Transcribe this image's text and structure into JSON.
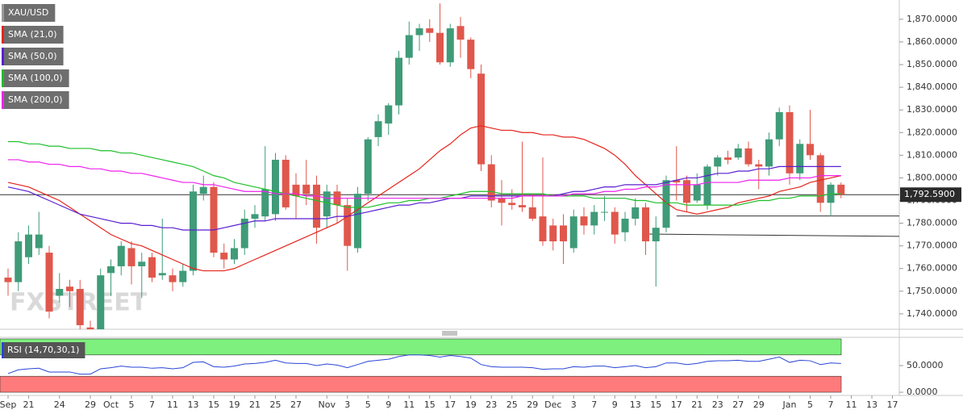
{
  "chart_data": [
    {
      "type": "candlestick",
      "title": "XAU/USD",
      "watermark": "FXSTREET",
      "categories": [
        "Sep",
        null,
        "21",
        null,
        null,
        "24",
        null,
        null,
        "29",
        null,
        "Oct",
        null,
        "5",
        null,
        "7",
        null,
        "11",
        null,
        "13",
        null,
        "15",
        null,
        "19",
        null,
        "21",
        null,
        "25",
        null,
        "27",
        null,
        null,
        "Nov",
        null,
        "3",
        null,
        "5",
        null,
        "9",
        null,
        "11",
        null,
        "15",
        null,
        "17",
        null,
        "19",
        null,
        "23",
        null,
        "25",
        null,
        "29",
        null,
        "Dec",
        null,
        "3",
        null,
        "7",
        null,
        "9",
        null,
        "13",
        null,
        "15",
        null,
        "17",
        null,
        "21",
        null,
        "23",
        null,
        "27",
        null,
        "29",
        null,
        null,
        "Jan",
        null,
        "5",
        null,
        "7",
        null,
        "11",
        null,
        "13",
        null,
        "17"
      ],
      "open": [
        1756,
        1754,
        1765,
        1769,
        1767,
        1748,
        1752,
        1751,
        1734,
        1733,
        1758,
        1761,
        1769,
        1761,
        1765,
        1757,
        1757,
        1754,
        1759,
        1793,
        1796,
        1767,
        1764,
        1769,
        1782,
        1783,
        1784,
        1808,
        1797,
        1797,
        1797,
        1783,
        1794,
        1788,
        1769,
        1793,
        1818,
        1824,
        1832,
        1853,
        1863,
        1866,
        1864,
        1851,
        1867,
        1861,
        1846,
        1806,
        1791,
        1789,
        1788,
        1787,
        1783,
        1779,
        1779,
        1769,
        1783,
        1779,
        1785,
        1785,
        1776,
        1782,
        1787,
        1772,
        1778,
        1799,
        1799,
        1790,
        1788,
        1805,
        1809,
        1809,
        1813,
        1806,
        1805,
        1817,
        1829,
        1802,
        1815,
        1810,
        1789,
        1797,
        null,
        null,
        null,
        null,
        null
      ],
      "high": [
        1760,
        1776,
        1779,
        1785,
        1770,
        1758,
        1755,
        1755,
        1737,
        1760,
        1764,
        1772,
        1772,
        1767,
        1767,
        1782,
        1760,
        1762,
        1797,
        1801,
        1798,
        1771,
        1773,
        1786,
        1788,
        1814,
        1811,
        1810,
        1802,
        1808,
        1801,
        1797,
        1797,
        1791,
        1796,
        1818,
        1828,
        1833,
        1856,
        1869,
        1868,
        1870,
        1877,
        1868,
        1871,
        1862,
        1850,
        1810,
        1799,
        1795,
        1816,
        1793,
        1809,
        1782,
        1784,
        1786,
        1787,
        1788,
        1792,
        1787,
        1785,
        1791,
        1789,
        1783,
        1801,
        1814,
        1801,
        1802,
        1806,
        1810,
        1812,
        1815,
        1816,
        1808,
        1820,
        1831,
        1832,
        1817,
        1830,
        1811,
        1798,
        1798,
        null,
        null,
        null,
        null,
        null
      ],
      "low": [
        1748,
        1750,
        1762,
        1766,
        1738,
        1745,
        1743,
        1733,
        1730,
        1730,
        1748,
        1757,
        1753,
        1747,
        1754,
        1755,
        1750,
        1752,
        1757,
        1790,
        1765,
        1760,
        1762,
        1766,
        1778,
        1781,
        1781,
        1786,
        1782,
        1788,
        1771,
        1778,
        1780,
        1759,
        1767,
        1790,
        1814,
        1819,
        1828,
        1850,
        1856,
        1860,
        1850,
        1849,
        1853,
        1844,
        1803,
        1787,
        1779,
        1786,
        1785,
        1781,
        1770,
        1768,
        1762,
        1767,
        1775,
        1775,
        1781,
        1771,
        1772,
        1779,
        1766,
        1752,
        1776,
        1790,
        1785,
        1789,
        1786,
        1801,
        1806,
        1808,
        1805,
        1795,
        1801,
        1814,
        1797,
        1799,
        1808,
        1785,
        1783,
        1791,
        null,
        null,
        null,
        null,
        null
      ],
      "close": [
        1754,
        1772,
        1775,
        1775,
        1741,
        1751,
        1750,
        1735,
        1733,
        1757,
        1761,
        1770,
        1761,
        1763,
        1756,
        1758,
        1754,
        1759,
        1794,
        1796,
        1767,
        1764,
        1769,
        1782,
        1784,
        1795,
        1808,
        1787,
        1792,
        1793,
        1778,
        1794,
        1788,
        1770,
        1793,
        1817,
        1825,
        1832,
        1853,
        1863,
        1866,
        1864,
        1851,
        1866,
        1861,
        1848,
        1806,
        1790,
        1789,
        1788,
        1787,
        1782,
        1772,
        1772,
        1772,
        1783,
        1779,
        1785,
        1785,
        1775,
        1782,
        1787,
        1772,
        1778,
        1799,
        1798,
        1789,
        1797,
        1805,
        1809,
        1808,
        1813,
        1806,
        1805,
        1817,
        1829,
        1802,
        1815,
        1810,
        1789,
        1797,
        1792.59,
        null,
        null,
        null,
        null,
        null
      ],
      "up_color": "#3f9b78",
      "down_color": "#e0574c",
      "series": [
        {
          "name": "SMA (21,0)",
          "color": "#e5241b",
          "values": [
            1798,
            1797,
            1796,
            1794,
            1792,
            1790,
            1787,
            1784,
            1781,
            1778,
            1775,
            1773,
            1771,
            1770,
            1768,
            1766,
            1764,
            1762,
            1760,
            1759,
            1759,
            1759,
            1760,
            1762,
            1764,
            1766,
            1768,
            1770,
            1772,
            1774,
            1776,
            1778,
            1780,
            1783,
            1786,
            1789,
            1792,
            1795,
            1798,
            1801,
            1804,
            1808,
            1812,
            1815,
            1819,
            1822,
            1823,
            1822,
            1821,
            1821,
            1820,
            1820,
            1819,
            1819,
            1818,
            1818,
            1817,
            1815,
            1813,
            1810,
            1806,
            1801,
            1797,
            1793,
            1789,
            1786,
            1785,
            1784,
            1785,
            1786,
            1787,
            1789,
            1790,
            1791,
            1792,
            1794,
            1795,
            1796,
            1798,
            1799,
            1800,
            1801,
            null,
            null,
            null,
            null,
            null
          ]
        },
        {
          "name": "SMA (50,0)",
          "color": "#5a1fd1",
          "values": [
            1796,
            1795,
            1794,
            1792,
            1790,
            1788,
            1786,
            1784,
            1783,
            1782,
            1781,
            1780,
            1780,
            1779,
            1779,
            1778,
            1778,
            1777,
            1777,
            1777,
            1777,
            1778,
            1779,
            1780,
            1781,
            1781,
            1782,
            1782,
            1782,
            1782,
            1782,
            1782,
            1783,
            1783,
            1784,
            1785,
            1786,
            1787,
            1788,
            1788,
            1789,
            1789,
            1790,
            1791,
            1791,
            1792,
            1792,
            1792,
            1792,
            1792,
            1792,
            1792,
            1792,
            1792,
            1793,
            1794,
            1794,
            1795,
            1796,
            1796,
            1797,
            1797,
            1797,
            1797,
            1798,
            1799,
            1800,
            1800,
            1801,
            1802,
            1802,
            1803,
            1803,
            1804,
            1804,
            1805,
            1805,
            1805,
            1805,
            1805,
            1805,
            1805,
            null,
            null,
            null,
            null,
            null
          ]
        },
        {
          "name": "SMA (100,0)",
          "color": "#1fbf2a",
          "values": [
            1816,
            1816,
            1815,
            1815,
            1814,
            1814,
            1813,
            1813,
            1813,
            1812,
            1812,
            1811,
            1811,
            1810,
            1809,
            1808,
            1807,
            1806,
            1805,
            1803,
            1801,
            1800,
            1798,
            1797,
            1796,
            1795,
            1794,
            1793,
            1792,
            1791,
            1790,
            1789,
            1788,
            1787,
            1787,
            1787,
            1788,
            1789,
            1789,
            1790,
            1790,
            1791,
            1791,
            1792,
            1793,
            1794,
            1794,
            1794,
            1793,
            1793,
            1793,
            1793,
            1793,
            1792,
            1792,
            1792,
            1792,
            1791,
            1791,
            1791,
            1791,
            1790,
            1790,
            1789,
            1789,
            1789,
            1788,
            1788,
            1788,
            1788,
            1788,
            1788,
            1789,
            1790,
            1790,
            1791,
            1791,
            1792,
            1792,
            1792,
            1793,
            1793,
            null,
            null,
            null,
            null,
            null
          ]
        },
        {
          "name": "SMA (200,0)",
          "color": "#ee22ee",
          "values": [
            1808,
            1808,
            1807,
            1807,
            1806,
            1806,
            1805,
            1805,
            1804,
            1804,
            1803,
            1803,
            1802,
            1802,
            1801,
            1800,
            1799,
            1798,
            1798,
            1797,
            1797,
            1796,
            1795,
            1794,
            1794,
            1794,
            1793,
            1793,
            1793,
            1792,
            1792,
            1791,
            1791,
            1791,
            1791,
            1791,
            1791,
            1791,
            1791,
            1791,
            1791,
            1791,
            1791,
            1791,
            1791,
            1791,
            1791,
            1791,
            1791,
            1791,
            1792,
            1792,
            1792,
            1792,
            1792,
            1793,
            1793,
            1793,
            1794,
            1794,
            1795,
            1795,
            1796,
            1796,
            1797,
            1797,
            1797,
            1797,
            1798,
            1798,
            1798,
            1798,
            1799,
            1799,
            1799,
            1799,
            1800,
            1800,
            1800,
            1801,
            1801,
            1801,
            null,
            null,
            null,
            null,
            null
          ]
        }
      ],
      "levels": [
        {
          "x": [
            65,
            86.7
          ],
          "values": [
            1783.2,
            1783.2
          ]
        },
        {
          "x": [
            62,
            86.7
          ],
          "values": [
            1775.2,
            1774.2
          ]
        }
      ],
      "last_price": {
        "value": 1792.59,
        "label": "1,792.5900"
      },
      "ylim": [
        1733.2,
        1878.5
      ],
      "yticks": [
        {
          "value": 1740,
          "label": "1,740.0000"
        },
        {
          "value": 1750,
          "label": "1,750.0000"
        },
        {
          "value": 1760,
          "label": "1,760.0000"
        },
        {
          "value": 1770,
          "label": "1,770.0000"
        },
        {
          "value": 1780,
          "label": "1,780.0000"
        },
        {
          "value": 1790,
          "label": "1,790.0000"
        },
        {
          "value": 1800,
          "label": "1,800.0000"
        },
        {
          "value": 1810,
          "label": "1,810.0000"
        },
        {
          "value": 1820,
          "label": "1,820.0000"
        },
        {
          "value": 1830,
          "label": "1,830.0000"
        },
        {
          "value": 1840,
          "label": "1,840.0000"
        },
        {
          "value": 1850,
          "label": "1,850.0000"
        },
        {
          "value": 1860,
          "label": "1,860.0000"
        },
        {
          "value": 1870,
          "label": "1,870.0000"
        }
      ]
    },
    {
      "type": "line",
      "title": "RSI (14,70,30,1)",
      "color": "#2a45d6",
      "values": [
        35,
        42,
        44,
        45,
        38,
        38,
        38,
        34,
        34,
        44,
        46,
        49,
        47,
        47,
        45,
        46,
        44,
        46,
        56,
        57,
        48,
        47,
        49,
        53,
        54,
        56,
        60,
        55,
        54,
        54,
        50,
        53,
        51,
        46,
        52,
        58,
        60,
        62,
        67,
        70,
        70,
        69,
        66,
        69,
        67,
        64,
        52,
        48,
        47,
        47,
        47,
        46,
        43,
        44,
        44,
        48,
        47,
        49,
        49,
        46,
        48,
        50,
        46,
        48,
        55,
        55,
        52,
        54,
        58,
        59,
        59,
        60,
        58,
        58,
        62,
        66,
        56,
        60,
        59,
        52,
        55,
        54,
        null,
        null,
        null,
        null,
        null
      ],
      "bands": [
        {
          "from": 70,
          "to": 100,
          "color": "#7df07d"
        },
        {
          "from": 0,
          "to": 30,
          "color": "#ff7b7b"
        }
      ],
      "ylim": [
        -6,
        103
      ],
      "yticks": [
        {
          "value": 50,
          "label": "50.0000"
        },
        {
          "value": 0,
          "label": "0.0000"
        }
      ]
    }
  ]
}
